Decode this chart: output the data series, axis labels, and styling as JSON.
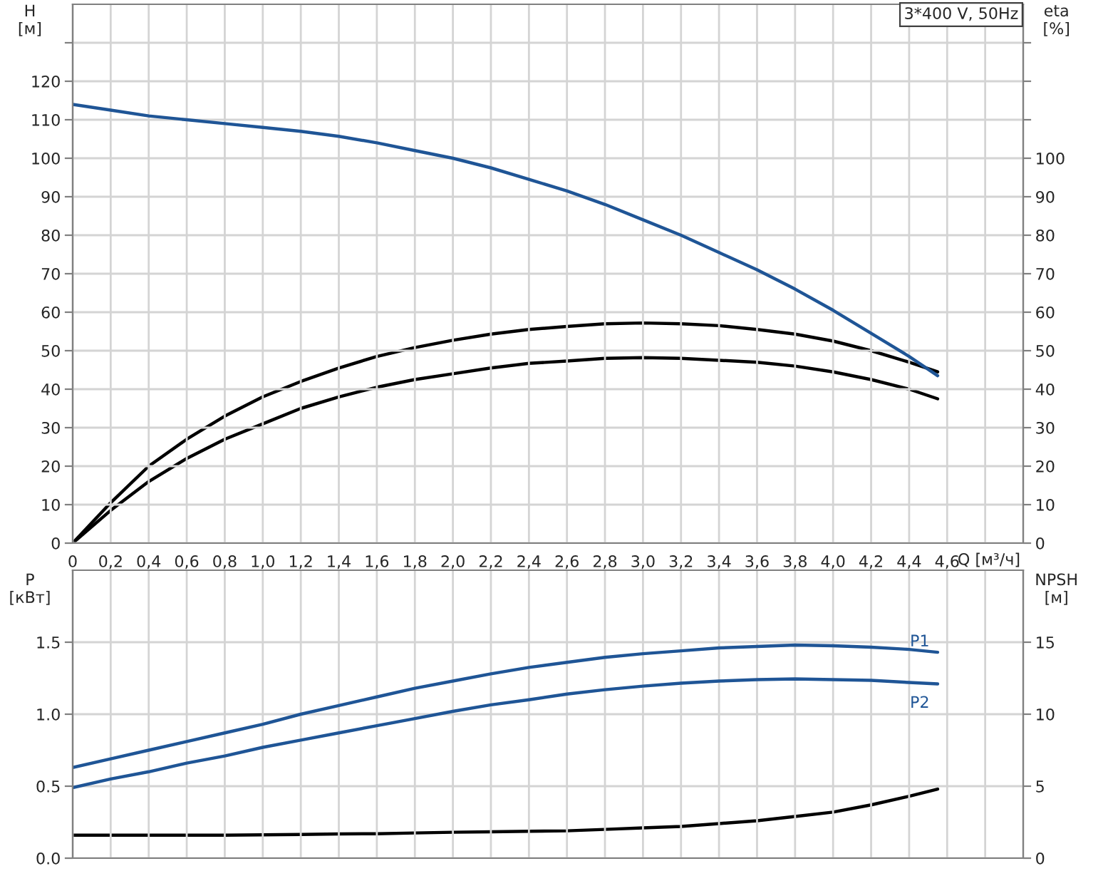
{
  "chart_data": [
    {
      "type": "line",
      "xlabel": "Q [м³/ч]",
      "ylabel": "H\n[м]",
      "y2label": "eta\n[%]",
      "annotations": [
        "3*400 V, 50Hz"
      ],
      "x": [
        0,
        0.2,
        0.4,
        0.6,
        0.8,
        1.0,
        1.2,
        1.4,
        1.6,
        1.8,
        2.0,
        2.2,
        2.4,
        2.6,
        2.8,
        3.0,
        3.2,
        3.4,
        3.6,
        3.8,
        4.0,
        4.2,
        4.4,
        4.55
      ],
      "series": [
        {
          "color": "#1f5596",
          "values": [
            114,
            112.5,
            111,
            110,
            109,
            108,
            107,
            105.7,
            104,
            102,
            100,
            97.5,
            94.5,
            91.5,
            88,
            84,
            80,
            75.5,
            71,
            66,
            60.5,
            54.5,
            48.5,
            43.5
          ]
        },
        {
          "color": "#000000",
          "axis": "y2",
          "values": [
            0,
            10.5,
            20,
            27,
            33,
            38,
            42,
            45.5,
            48.5,
            50.8,
            52.7,
            54.3,
            55.5,
            56.3,
            57,
            57.2,
            57,
            56.5,
            55.5,
            54.3,
            52.5,
            50,
            47,
            44.5
          ]
        },
        {
          "color": "#000000",
          "axis": "y2",
          "values": [
            0,
            8.5,
            16,
            22,
            27,
            31,
            35,
            38,
            40.5,
            42.5,
            44,
            45.5,
            46.7,
            47.3,
            48,
            48.2,
            48,
            47.5,
            47,
            46,
            44.5,
            42.5,
            40,
            37.5
          ]
        }
      ],
      "xlim": [
        0,
        5
      ],
      "xticks": [
        0,
        {
          "value": 0.2,
          "label": "0,2"
        },
        {
          "value": 0.4,
          "label": "0,4"
        },
        {
          "value": 0.6,
          "label": "0,6"
        },
        {
          "value": 0.8,
          "label": "0,8"
        },
        {
          "value": 1.0,
          "label": "1,0"
        },
        {
          "value": 1.2,
          "label": "1,2"
        },
        {
          "value": 1.4,
          "label": "1,4"
        },
        {
          "value": 1.6,
          "label": "1,6"
        },
        {
          "value": 1.8,
          "label": "1,8"
        },
        {
          "value": 2.0,
          "label": "2,0"
        },
        {
          "value": 2.2,
          "label": "2,2"
        },
        {
          "value": 2.4,
          "label": "2,4"
        },
        {
          "value": 2.6,
          "label": "2,6"
        },
        {
          "value": 2.8,
          "label": "2,8"
        },
        {
          "value": 3.0,
          "label": "3,0"
        },
        {
          "value": 3.2,
          "label": "3,2"
        },
        {
          "value": 3.4,
          "label": "3,4"
        },
        {
          "value": 3.6,
          "label": "3,6"
        },
        {
          "value": 3.8,
          "label": "3,8"
        },
        {
          "value": 4.0,
          "label": "4,0"
        },
        {
          "value": 4.2,
          "label": "4,2"
        },
        {
          "value": 4.4,
          "label": "4,4"
        },
        {
          "value": 4.6,
          "label": "4,6"
        },
        {
          "value": 4.8,
          "label": null
        }
      ],
      "ylim": [
        0,
        140
      ],
      "yticks": [
        0,
        10,
        20,
        30,
        40,
        50,
        60,
        70,
        80,
        90,
        100,
        110,
        120,
        {
          "value": 130,
          "label": null
        }
      ],
      "y2lim": [
        0,
        140
      ],
      "y2ticks": [
        0,
        10,
        20,
        30,
        40,
        50,
        60,
        70,
        80,
        90,
        100,
        {
          "value": 110,
          "label": null
        },
        {
          "value": 120,
          "label": null
        },
        {
          "value": 130,
          "label": null
        }
      ],
      "grid": true,
      "legend": false
    },
    {
      "type": "line",
      "ylabel": "P\n[кВт]",
      "y2label": "NPSH\n[м]",
      "x": [
        0,
        0.2,
        0.4,
        0.6,
        0.8,
        1.0,
        1.2,
        1.4,
        1.6,
        1.8,
        2.0,
        2.2,
        2.4,
        2.6,
        2.8,
        3.0,
        3.2,
        3.4,
        3.6,
        3.8,
        4.0,
        4.2,
        4.4,
        4.55
      ],
      "series": [
        {
          "name": "P1",
          "color": "#1f5596",
          "values": [
            0.63,
            0.69,
            0.75,
            0.81,
            0.87,
            0.93,
            1.0,
            1.06,
            1.12,
            1.18,
            1.23,
            1.28,
            1.325,
            1.36,
            1.395,
            1.42,
            1.44,
            1.46,
            1.47,
            1.48,
            1.475,
            1.465,
            1.45,
            1.43
          ]
        },
        {
          "name": "P2",
          "color": "#1f5596",
          "values": [
            0.49,
            0.55,
            0.6,
            0.66,
            0.71,
            0.77,
            0.82,
            0.87,
            0.92,
            0.97,
            1.02,
            1.065,
            1.1,
            1.14,
            1.17,
            1.195,
            1.215,
            1.23,
            1.24,
            1.245,
            1.24,
            1.235,
            1.22,
            1.21
          ]
        },
        {
          "color": "#000000",
          "axis": "y2",
          "values": [
            1.6,
            1.6,
            1.6,
            1.6,
            1.6,
            1.62,
            1.65,
            1.68,
            1.7,
            1.75,
            1.8,
            1.83,
            1.87,
            1.9,
            2.0,
            2.1,
            2.2,
            2.4,
            2.6,
            2.9,
            3.2,
            3.7,
            4.3,
            4.8
          ]
        }
      ],
      "xlim": [
        0,
        5
      ],
      "xticks": [
        0,
        0.2,
        0.4,
        0.6,
        0.8,
        1.0,
        1.2,
        1.4,
        1.6,
        1.8,
        2.0,
        2.2,
        2.4,
        2.6,
        2.8,
        3.0,
        3.2,
        3.4,
        3.6,
        3.8,
        4.0,
        4.2,
        4.4,
        4.6,
        4.8
      ],
      "ylim": [
        0,
        2.0
      ],
      "yticks": [
        {
          "value": 0,
          "label": "0.0"
        },
        0.5,
        {
          "value": 1.0,
          "label": "1.0"
        },
        1.5
      ],
      "y2lim": [
        0,
        20
      ],
      "y2ticks": [
        0,
        5,
        10,
        15
      ],
      "grid": true,
      "legend": false,
      "tick_labels": "y"
    }
  ]
}
